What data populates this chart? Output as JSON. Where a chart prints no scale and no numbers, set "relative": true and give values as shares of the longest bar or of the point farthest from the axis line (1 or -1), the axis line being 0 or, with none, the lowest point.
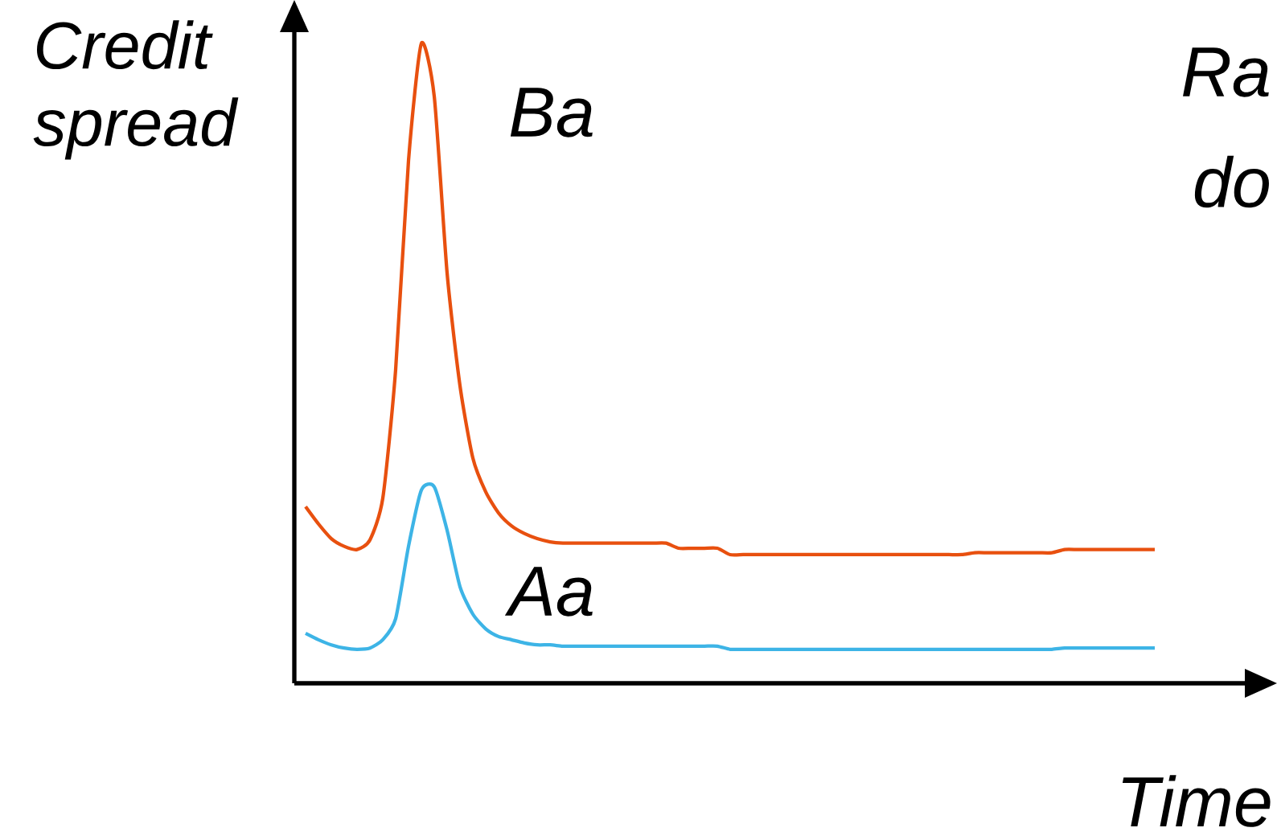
{
  "chart_data": {
    "type": "line",
    "relative": true,
    "xlabel": "Time",
    "ylabel": "Credit spread",
    "annotations": [
      "Ra",
      "do"
    ],
    "categories": [
      null,
      null,
      null,
      null,
      null,
      null,
      null,
      null,
      null,
      null,
      null,
      null,
      null,
      null,
      null,
      null,
      null,
      null,
      null,
      null,
      null,
      null,
      null,
      null,
      null,
      null,
      null,
      null,
      null,
      null,
      null,
      null,
      null,
      null,
      null,
      null,
      null,
      null,
      null,
      null,
      null,
      null,
      null,
      null,
      null,
      null,
      null,
      null,
      null,
      null,
      null,
      null,
      null,
      null,
      null,
      null,
      null,
      null,
      null,
      null,
      null,
      null,
      null,
      null,
      null,
      null,
      null
    ],
    "series": [
      {
        "name": "Ba",
        "color": "#e8500f",
        "values": [
          0.276,
          0.249,
          0.226,
          0.214,
          0.209,
          0.224,
          0.289,
          0.49,
          0.817,
          1,
          0.917,
          0.641,
          0.465,
          0.352,
          0.299,
          0.266,
          0.246,
          0.234,
          0.226,
          0.221,
          0.219,
          0.219,
          0.219,
          0.219,
          0.219,
          0.219,
          0.219,
          0.219,
          0.219,
          0.211,
          0.211,
          0.211,
          0.211,
          0.201,
          0.201,
          0.201,
          0.201,
          0.201,
          0.201,
          0.201,
          0.201,
          0.201,
          0.201,
          0.201,
          0.201,
          0.201,
          0.201,
          0.201,
          0.201,
          0.201,
          0.201,
          0.201,
          0.204,
          0.204,
          0.204,
          0.204,
          0.204,
          0.204,
          0.204,
          0.209,
          0.209,
          0.209,
          0.209,
          0.209,
          0.209,
          0.209,
          0.209
        ]
      },
      {
        "name": "Aa",
        "color": "#3db4e6",
        "values": [
          0.078,
          0.068,
          0.06,
          0.055,
          0.053,
          0.055,
          0.068,
          0.101,
          0.214,
          0.302,
          0.307,
          0.239,
          0.151,
          0.108,
          0.085,
          0.073,
          0.068,
          0.063,
          0.06,
          0.06,
          0.058,
          0.058,
          0.058,
          0.058,
          0.058,
          0.058,
          0.058,
          0.058,
          0.058,
          0.058,
          0.058,
          0.058,
          0.058,
          0.053,
          0.053,
          0.053,
          0.053,
          0.053,
          0.053,
          0.053,
          0.053,
          0.053,
          0.053,
          0.053,
          0.053,
          0.053,
          0.053,
          0.053,
          0.053,
          0.053,
          0.053,
          0.053,
          0.053,
          0.053,
          0.053,
          0.053,
          0.053,
          0.053,
          0.053,
          0.055,
          0.055,
          0.055,
          0.055,
          0.055,
          0.055,
          0.055,
          0.055
        ]
      }
    ]
  }
}
